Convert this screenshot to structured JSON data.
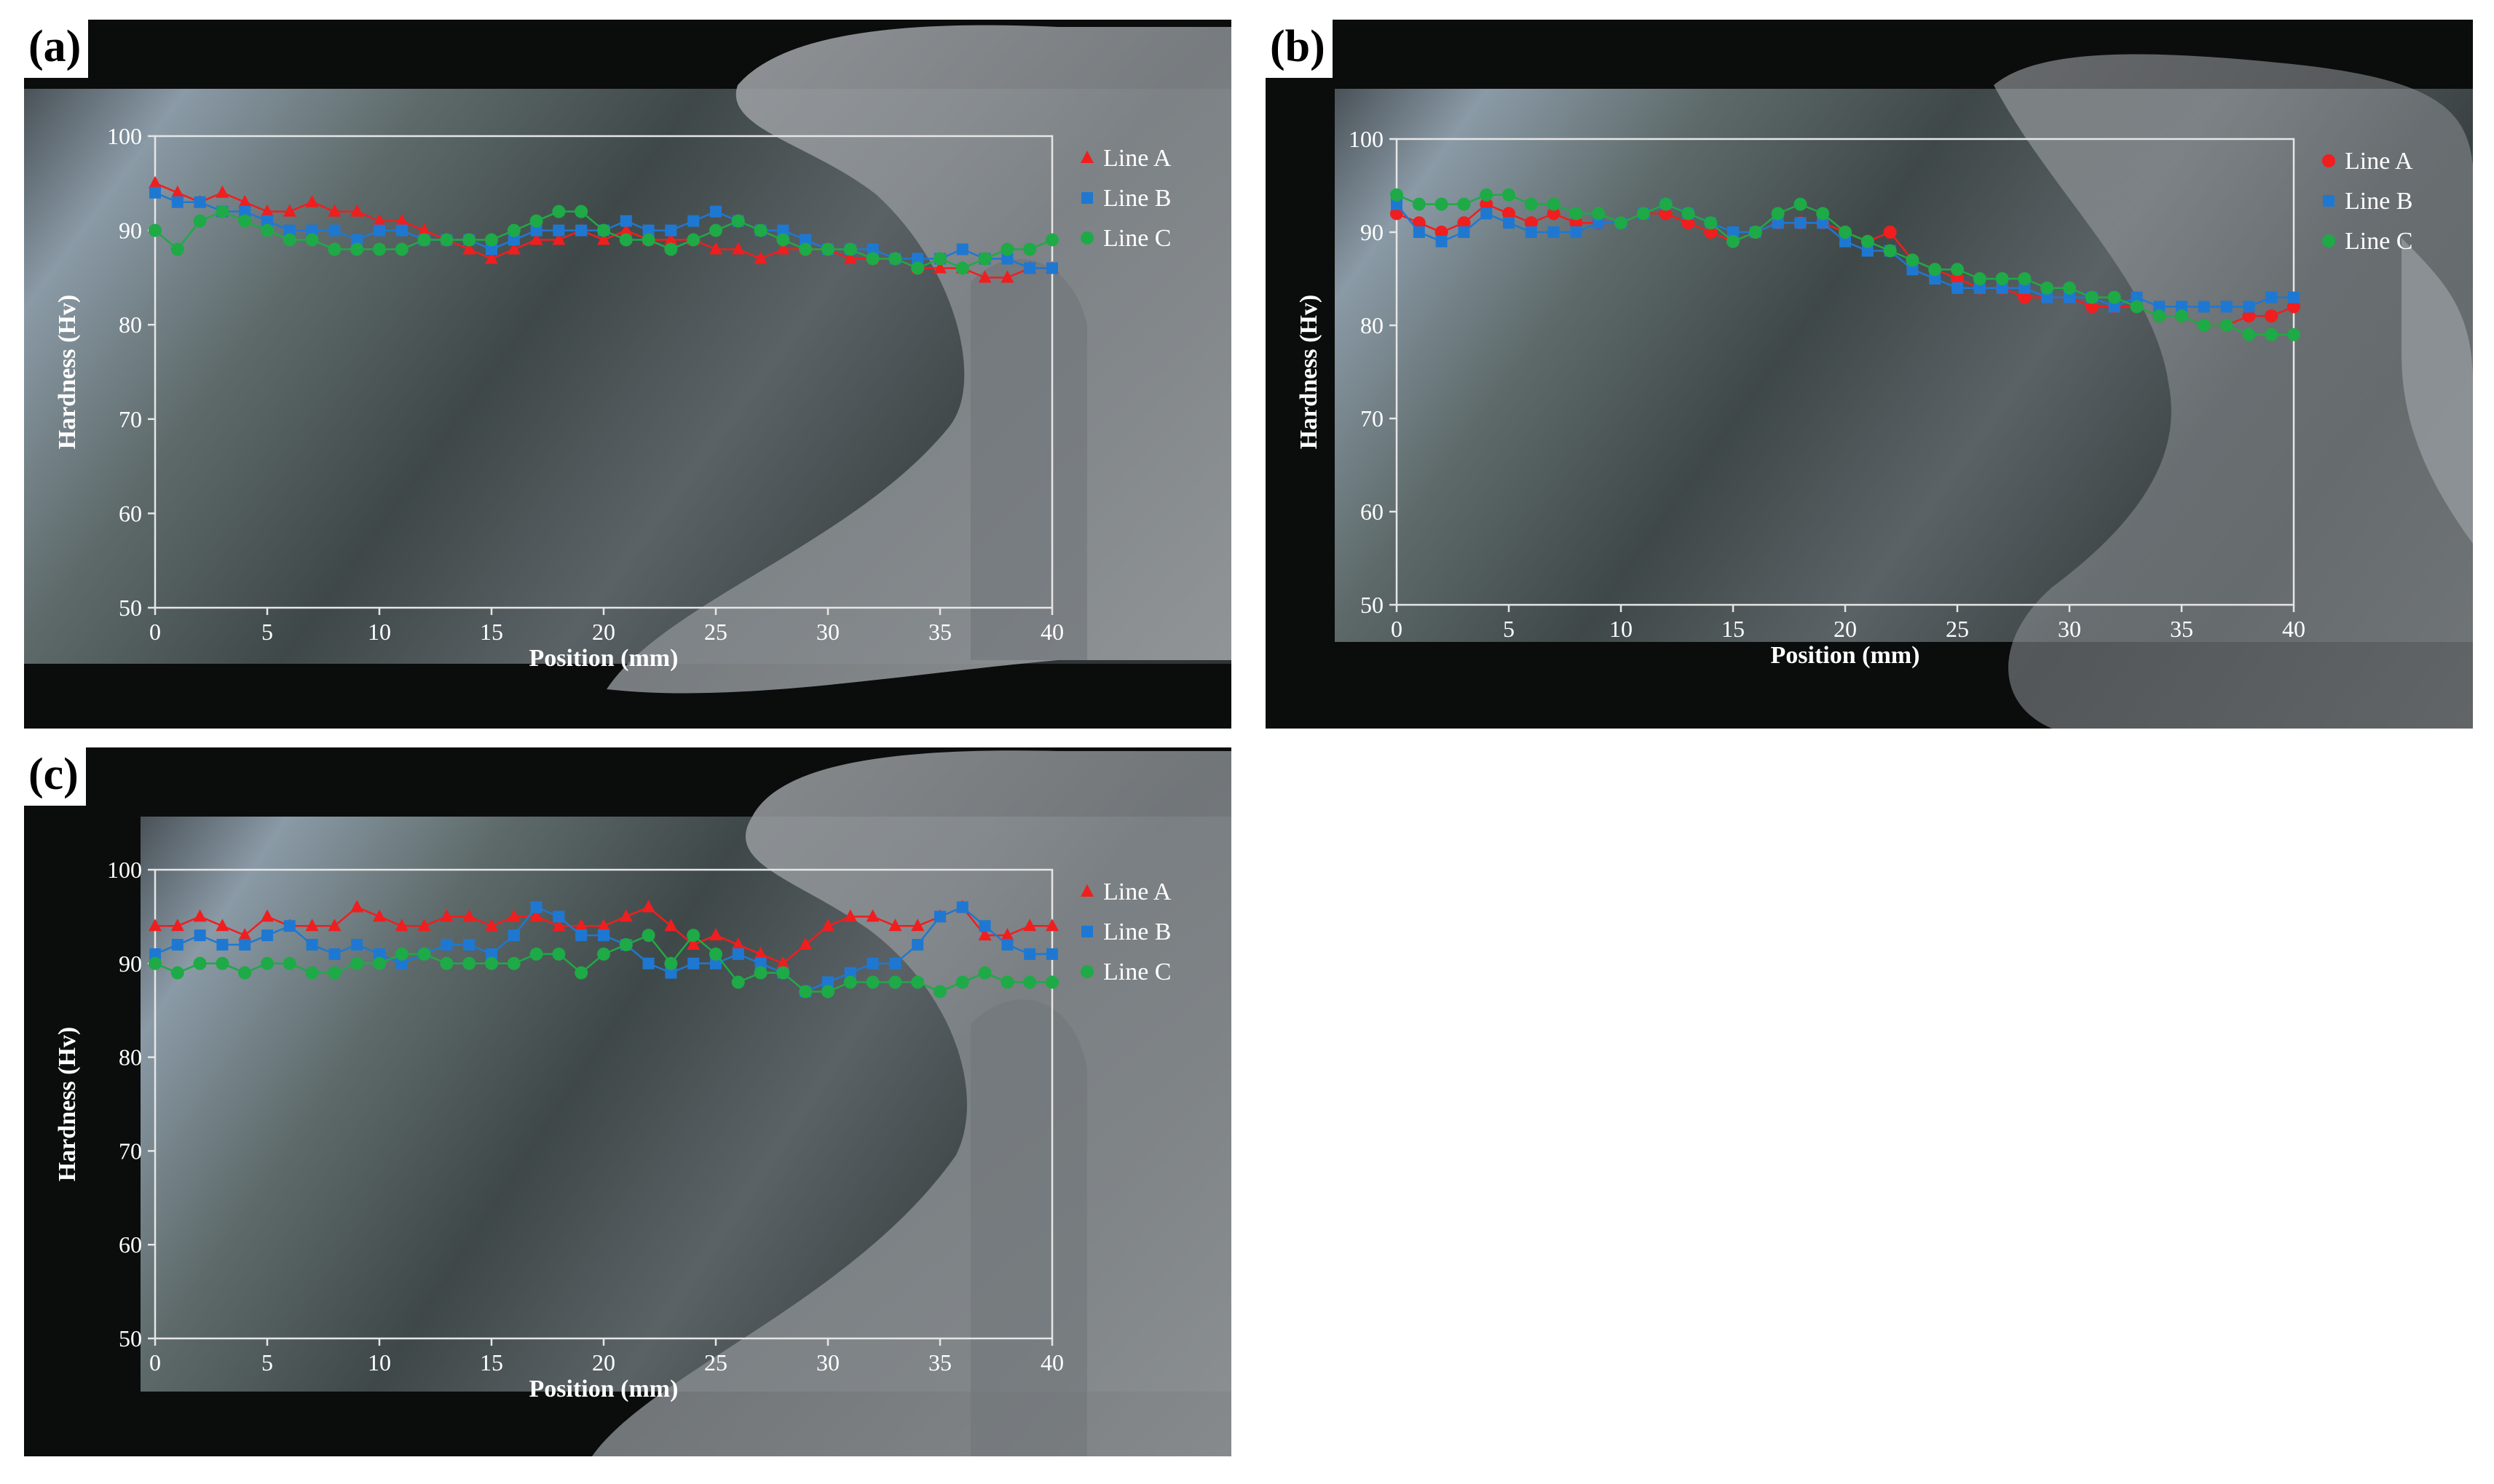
{
  "colors": {
    "line_a": "#f01e1e",
    "line_b": "#1e78d2",
    "line_c": "#1eaa46",
    "frame": "#e6e6e6"
  },
  "chart_data": [
    {
      "panel": "(a)",
      "type": "scatter",
      "xlabel": "Position (mm)",
      "ylabel": "Hardness (Hv)",
      "xlim": [
        0,
        40
      ],
      "ylim": [
        50,
        100
      ],
      "xticks": [
        0,
        5,
        10,
        15,
        20,
        25,
        30,
        35,
        40
      ],
      "yticks": [
        50,
        60,
        70,
        80,
        90,
        100
      ],
      "legend_position": "top-right",
      "x": [
        0,
        1,
        2,
        3,
        4,
        5,
        6,
        7,
        8,
        9,
        10,
        11,
        12,
        13,
        14,
        15,
        16,
        17,
        18,
        19,
        20,
        21,
        22,
        23,
        24,
        25,
        26,
        27,
        28,
        29,
        30,
        31,
        32,
        33,
        34,
        35,
        36,
        37,
        38,
        39,
        40
      ],
      "series": [
        {
          "name": "Line A",
          "marker": "triangle",
          "values": [
            95,
            94,
            93,
            94,
            93,
            92,
            92,
            93,
            92,
            92,
            91,
            91,
            90,
            89,
            88,
            87,
            88,
            89,
            89,
            90,
            89,
            90,
            89,
            89,
            89,
            88,
            88,
            87,
            88,
            88,
            88,
            87,
            87,
            87,
            86,
            86,
            86,
            85,
            85,
            86,
            86
          ]
        },
        {
          "name": "Line B",
          "marker": "square",
          "values": [
            94,
            93,
            93,
            92,
            92,
            91,
            90,
            90,
            90,
            89,
            90,
            90,
            89,
            89,
            89,
            88,
            89,
            90,
            90,
            90,
            90,
            91,
            90,
            90,
            91,
            92,
            91,
            90,
            90,
            89,
            88,
            88,
            88,
            87,
            87,
            87,
            88,
            87,
            87,
            86,
            86
          ]
        },
        {
          "name": "Line C",
          "marker": "circle",
          "values": [
            90,
            88,
            91,
            92,
            91,
            90,
            89,
            89,
            88,
            88,
            88,
            88,
            89,
            89,
            89,
            89,
            90,
            91,
            92,
            92,
            90,
            89,
            89,
            88,
            89,
            90,
            91,
            90,
            89,
            88,
            88,
            88,
            87,
            87,
            86,
            87,
            86,
            87,
            88,
            88,
            89
          ]
        }
      ]
    },
    {
      "panel": "(b)",
      "type": "scatter",
      "xlabel": "Position (mm)",
      "ylabel": "Hardness (Hv)",
      "xlim": [
        0,
        40
      ],
      "ylim": [
        50,
        100
      ],
      "xticks": [
        0,
        5,
        10,
        15,
        20,
        25,
        30,
        35,
        40
      ],
      "yticks": [
        50,
        60,
        70,
        80,
        90,
        100
      ],
      "legend_position": "top-right",
      "x": [
        0,
        1,
        2,
        3,
        4,
        5,
        6,
        7,
        8,
        9,
        10,
        11,
        12,
        13,
        14,
        15,
        16,
        17,
        18,
        19,
        20,
        21,
        22,
        23,
        24,
        25,
        26,
        27,
        28,
        29,
        30,
        31,
        32,
        33,
        34,
        35,
        36,
        37,
        38,
        39,
        40
      ],
      "series": [
        {
          "name": "Line A",
          "marker": "circle",
          "values": [
            92,
            91,
            90,
            91,
            93,
            92,
            91,
            92,
            91,
            91,
            91,
            92,
            92,
            91,
            90,
            89,
            90,
            91,
            91,
            91,
            90,
            89,
            90,
            87,
            86,
            85,
            84,
            84,
            83,
            83,
            83,
            82,
            82,
            82,
            81,
            81,
            80,
            80,
            81,
            81,
            82
          ]
        },
        {
          "name": "Line B",
          "marker": "square",
          "values": [
            93,
            90,
            89,
            90,
            92,
            91,
            90,
            90,
            90,
            91,
            91,
            92,
            93,
            92,
            91,
            90,
            90,
            91,
            91,
            91,
            89,
            88,
            88,
            86,
            85,
            84,
            84,
            84,
            84,
            83,
            83,
            83,
            82,
            83,
            82,
            82,
            82,
            82,
            82,
            83,
            83
          ]
        },
        {
          "name": "Line C",
          "marker": "circle",
          "values": [
            94,
            93,
            93,
            93,
            94,
            94,
            93,
            93,
            92,
            92,
            91,
            92,
            93,
            92,
            91,
            89,
            90,
            92,
            93,
            92,
            90,
            89,
            88,
            87,
            86,
            86,
            85,
            85,
            85,
            84,
            84,
            83,
            83,
            82,
            81,
            81,
            80,
            80,
            79,
            79,
            79
          ]
        }
      ]
    },
    {
      "panel": "(c)",
      "type": "scatter",
      "xlabel": "Position (mm)",
      "ylabel": "Hardness (Hv)",
      "xlim": [
        0,
        40
      ],
      "ylim": [
        50,
        100
      ],
      "xticks": [
        0,
        5,
        10,
        15,
        20,
        25,
        30,
        35,
        40
      ],
      "yticks": [
        50,
        60,
        70,
        80,
        90,
        100
      ],
      "legend_position": "top-right",
      "x": [
        0,
        1,
        2,
        3,
        4,
        5,
        6,
        7,
        8,
        9,
        10,
        11,
        12,
        13,
        14,
        15,
        16,
        17,
        18,
        19,
        20,
        21,
        22,
        23,
        24,
        25,
        26,
        27,
        28,
        29,
        30,
        31,
        32,
        33,
        34,
        35,
        36,
        37,
        38,
        39,
        40
      ],
      "series": [
        {
          "name": "Line A",
          "marker": "triangle",
          "values": [
            94,
            94,
            95,
            94,
            93,
            95,
            94,
            94,
            94,
            96,
            95,
            94,
            94,
            95,
            95,
            94,
            95,
            95,
            94,
            94,
            94,
            95,
            96,
            94,
            92,
            93,
            92,
            91,
            90,
            92,
            94,
            95,
            95,
            94,
            94,
            95,
            96,
            93,
            93,
            94,
            94
          ]
        },
        {
          "name": "Line B",
          "marker": "square",
          "values": [
            91,
            92,
            93,
            92,
            92,
            93,
            94,
            92,
            91,
            92,
            91,
            90,
            91,
            92,
            92,
            91,
            93,
            96,
            95,
            93,
            93,
            92,
            90,
            89,
            90,
            90,
            91,
            90,
            89,
            87,
            88,
            89,
            90,
            90,
            92,
            95,
            96,
            94,
            92,
            91,
            91
          ]
        },
        {
          "name": "Line C",
          "marker": "circle",
          "values": [
            90,
            89,
            90,
            90,
            89,
            90,
            90,
            89,
            89,
            90,
            90,
            91,
            91,
            90,
            90,
            90,
            90,
            91,
            91,
            89,
            91,
            92,
            93,
            90,
            93,
            91,
            88,
            89,
            89,
            87,
            87,
            88,
            88,
            88,
            88,
            87,
            88,
            89,
            88,
            88,
            88
          ]
        }
      ]
    }
  ]
}
